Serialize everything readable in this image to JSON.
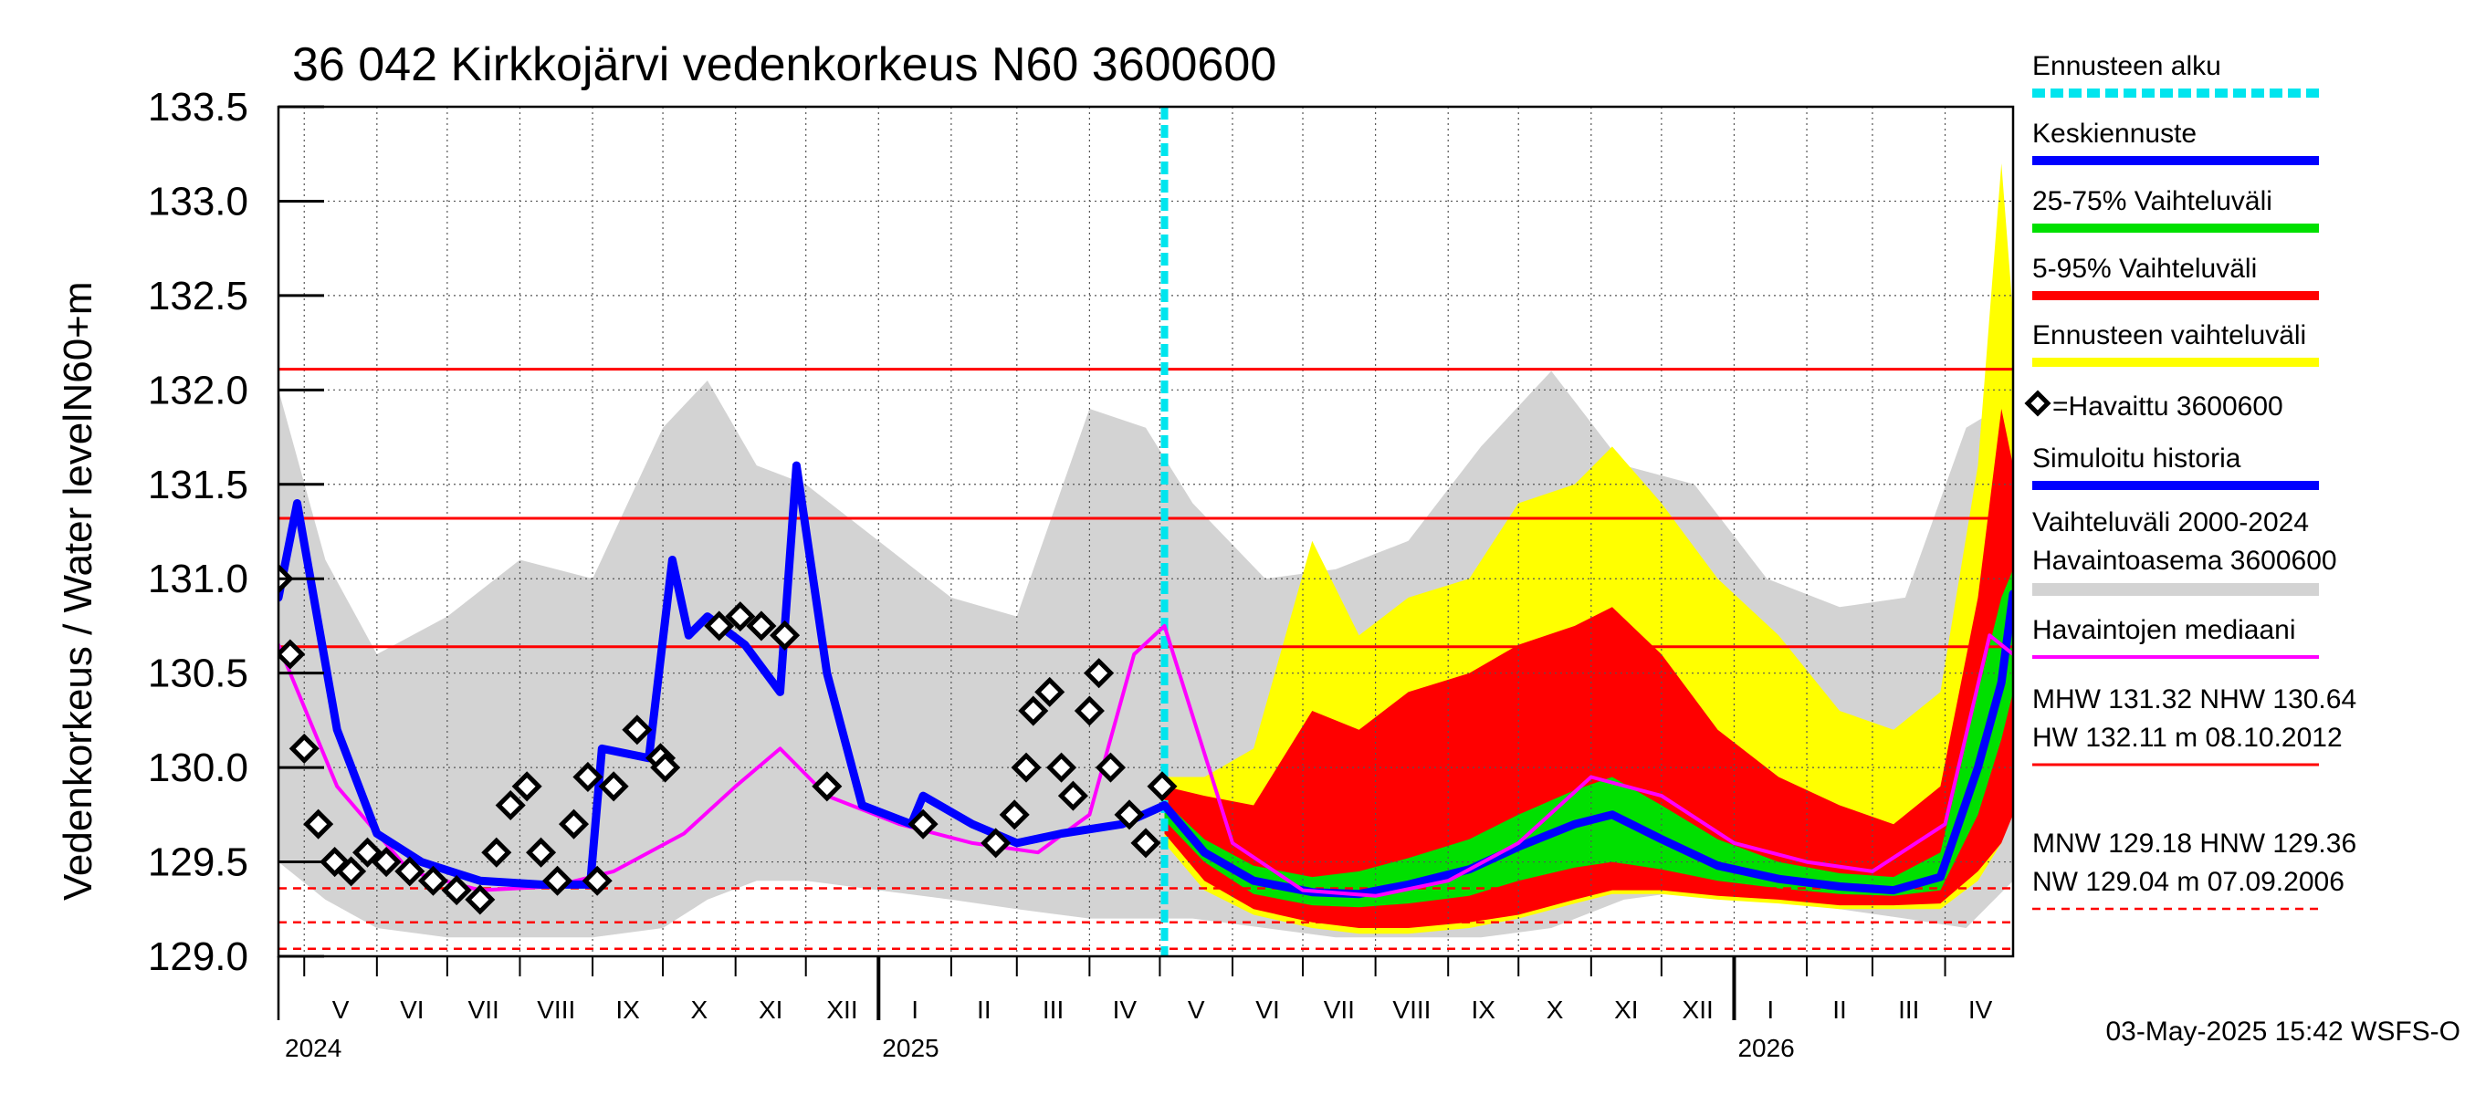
{
  "chart_data": {
    "type": "area",
    "title": "36 042 Kirkkojärvi vedenkorkeus N60 3600600",
    "ylabel_top": "N60+m",
    "ylabel": "Vedenkorkeus / Water level",
    "ylim": [
      129.0,
      133.5
    ],
    "yticks": [
      "133.5",
      "133.0",
      "132.5",
      "132.0",
      "131.5",
      "131.0",
      "130.5",
      "130.0",
      "129.5",
      "129.0"
    ],
    "x_start": "2024-04-20",
    "x_end": "2026-04-30",
    "forecast_start": "2025-05-03",
    "months": [
      {
        "label": "V",
        "start": "2024-05-01",
        "end": "2024-06-01"
      },
      {
        "label": "VI",
        "start": "2024-06-01",
        "end": "2024-07-01"
      },
      {
        "label": "VII",
        "start": "2024-07-01",
        "end": "2024-08-01"
      },
      {
        "label": "VIII",
        "start": "2024-08-01",
        "end": "2024-09-01"
      },
      {
        "label": "IX",
        "start": "2024-09-01",
        "end": "2024-10-01"
      },
      {
        "label": "X",
        "start": "2024-10-01",
        "end": "2024-11-01"
      },
      {
        "label": "XI",
        "start": "2024-11-01",
        "end": "2024-12-01"
      },
      {
        "label": "XII",
        "start": "2024-12-01",
        "end": "2025-01-01"
      },
      {
        "label": "I",
        "start": "2025-01-01",
        "end": "2025-02-01"
      },
      {
        "label": "II",
        "start": "2025-02-01",
        "end": "2025-03-01"
      },
      {
        "label": "III",
        "start": "2025-03-01",
        "end": "2025-04-01"
      },
      {
        "label": "IV",
        "start": "2025-04-01",
        "end": "2025-05-01"
      },
      {
        "label": "V",
        "start": "2025-05-01",
        "end": "2025-06-01"
      },
      {
        "label": "VI",
        "start": "2025-06-01",
        "end": "2025-07-01"
      },
      {
        "label": "VII",
        "start": "2025-07-01",
        "end": "2025-08-01"
      },
      {
        "label": "VIII",
        "start": "2025-08-01",
        "end": "2025-09-01"
      },
      {
        "label": "IX",
        "start": "2025-09-01",
        "end": "2025-10-01"
      },
      {
        "label": "X",
        "start": "2025-10-01",
        "end": "2025-11-01"
      },
      {
        "label": "XI",
        "start": "2025-11-01",
        "end": "2025-12-01"
      },
      {
        "label": "XII",
        "start": "2025-12-01",
        "end": "2026-01-01"
      },
      {
        "label": "I",
        "start": "2026-01-01",
        "end": "2026-02-01"
      },
      {
        "label": "II",
        "start": "2026-02-01",
        "end": "2026-03-01"
      },
      {
        "label": "III",
        "start": "2026-03-01",
        "end": "2026-04-01"
      },
      {
        "label": "IV",
        "start": "2026-04-01",
        "end": "2026-05-01"
      }
    ],
    "years": [
      {
        "label": "2024",
        "date": "2024-04-20"
      },
      {
        "label": "2025",
        "date": "2025-01-01"
      },
      {
        "label": "2026",
        "date": "2026-01-01"
      }
    ],
    "reference_lines": [
      {
        "name": "HW",
        "value": 132.11,
        "style": "solid"
      },
      {
        "name": "MHW",
        "value": 131.32,
        "style": "solid"
      },
      {
        "name": "NHW",
        "value": 130.64,
        "style": "solid"
      },
      {
        "name": "HNW",
        "value": 129.36,
        "style": "dashed"
      },
      {
        "name": "MNW",
        "value": 129.18,
        "style": "dashed"
      },
      {
        "name": "NW",
        "value": 129.04,
        "style": "dashed"
      }
    ],
    "series": [
      {
        "name": "Vaihteluväli 2000-2024",
        "kind": "band",
        "color": "#d3d3d3",
        "x": [
          "2024-04-20",
          "2024-05-10",
          "2024-06-01",
          "2024-07-01",
          "2024-08-01",
          "2024-09-01",
          "2024-10-01",
          "2024-10-20",
          "2024-11-10",
          "2024-12-01",
          "2025-01-01",
          "2025-02-01",
          "2025-03-01",
          "2025-04-01",
          "2025-04-25",
          "2025-05-15",
          "2025-06-15",
          "2025-07-15",
          "2025-08-15",
          "2025-09-15",
          "2025-10-15",
          "2025-11-15",
          "2025-12-15",
          "2026-01-15",
          "2026-02-15",
          "2026-03-15",
          "2026-04-10",
          "2026-04-30"
        ],
        "low": [
          129.5,
          129.3,
          129.15,
          129.1,
          129.1,
          129.1,
          129.15,
          129.3,
          129.4,
          129.4,
          129.35,
          129.3,
          129.25,
          129.2,
          129.2,
          129.2,
          129.15,
          129.1,
          129.1,
          129.1,
          129.15,
          129.3,
          129.35,
          129.3,
          129.25,
          129.2,
          129.15,
          129.4
        ],
        "high": [
          132.0,
          131.1,
          130.6,
          130.8,
          131.1,
          131.0,
          131.8,
          132.05,
          131.6,
          131.5,
          131.2,
          130.9,
          130.8,
          131.9,
          131.8,
          131.4,
          131.0,
          131.05,
          131.2,
          131.7,
          132.1,
          131.6,
          131.5,
          131.0,
          130.85,
          130.9,
          131.8,
          131.95
        ]
      },
      {
        "name": "Ennusteen vaihteluväli",
        "kind": "band",
        "color": "#ffff00",
        "x": [
          "2025-05-03",
          "2025-05-20",
          "2025-06-10",
          "2025-07-05",
          "2025-07-25",
          "2025-08-15",
          "2025-09-10",
          "2025-10-01",
          "2025-10-25",
          "2025-11-10",
          "2025-12-01",
          "2025-12-25",
          "2026-01-20",
          "2026-02-15",
          "2026-03-10",
          "2026-03-30",
          "2026-04-15",
          "2026-04-25",
          "2026-04-30"
        ],
        "low": [
          129.6,
          129.35,
          129.22,
          129.15,
          129.12,
          129.12,
          129.15,
          129.2,
          129.28,
          129.33,
          129.33,
          129.3,
          129.28,
          129.25,
          129.25,
          129.25,
          129.4,
          129.6,
          129.9
        ],
        "high": [
          129.95,
          129.95,
          130.1,
          131.2,
          130.7,
          130.9,
          131.0,
          131.4,
          131.5,
          131.7,
          131.4,
          131.0,
          130.7,
          130.3,
          130.2,
          130.4,
          131.6,
          133.2,
          132.4
        ]
      },
      {
        "name": "5-95% Vaihteluväli",
        "kind": "band",
        "color": "#ff0000",
        "x": [
          "2025-05-03",
          "2025-05-20",
          "2025-06-10",
          "2025-07-05",
          "2025-07-25",
          "2025-08-15",
          "2025-09-10",
          "2025-10-01",
          "2025-10-25",
          "2025-11-10",
          "2025-12-01",
          "2025-12-25",
          "2026-01-20",
          "2026-02-15",
          "2026-03-10",
          "2026-03-30",
          "2026-04-15",
          "2026-04-25",
          "2026-04-30"
        ],
        "low": [
          129.65,
          129.4,
          129.25,
          129.18,
          129.15,
          129.15,
          129.18,
          129.22,
          129.3,
          129.35,
          129.35,
          129.32,
          129.3,
          129.27,
          129.27,
          129.28,
          129.45,
          129.6,
          129.75
        ],
        "high": [
          129.9,
          129.85,
          129.8,
          130.3,
          130.2,
          130.4,
          130.5,
          130.65,
          130.75,
          130.85,
          130.6,
          130.2,
          129.95,
          129.8,
          129.7,
          129.9,
          130.9,
          131.9,
          131.6
        ]
      },
      {
        "name": "25-75% Vaihteluväli",
        "kind": "band",
        "color": "#00e000",
        "x": [
          "2025-05-03",
          "2025-05-20",
          "2025-06-10",
          "2025-07-05",
          "2025-07-25",
          "2025-08-15",
          "2025-09-10",
          "2025-10-01",
          "2025-10-25",
          "2025-11-10",
          "2025-12-01",
          "2025-12-25",
          "2026-01-20",
          "2026-02-15",
          "2026-03-10",
          "2026-03-30",
          "2026-04-15",
          "2026-04-25",
          "2026-04-30"
        ],
        "low": [
          129.72,
          129.5,
          129.33,
          129.27,
          129.26,
          129.28,
          129.32,
          129.4,
          129.47,
          129.5,
          129.46,
          129.4,
          129.36,
          129.33,
          129.32,
          129.35,
          129.75,
          130.15,
          130.4
        ],
        "high": [
          129.82,
          129.62,
          129.48,
          129.42,
          129.45,
          129.52,
          129.62,
          129.75,
          129.88,
          129.95,
          129.8,
          129.62,
          129.5,
          129.44,
          129.42,
          129.55,
          130.4,
          130.9,
          131.05
        ]
      },
      {
        "name": "Keskiennuste",
        "kind": "line",
        "color": "#0000ff",
        "x": [
          "2025-05-03",
          "2025-05-20",
          "2025-06-10",
          "2025-07-05",
          "2025-07-25",
          "2025-08-15",
          "2025-09-10",
          "2025-10-01",
          "2025-10-25",
          "2025-11-10",
          "2025-12-01",
          "2025-12-25",
          "2026-01-20",
          "2026-02-15",
          "2026-03-10",
          "2026-03-30",
          "2026-04-15",
          "2026-04-25",
          "2026-04-30"
        ],
        "values": [
          129.8,
          129.55,
          129.4,
          129.34,
          129.33,
          129.38,
          129.46,
          129.58,
          129.7,
          129.75,
          129.62,
          129.48,
          129.41,
          129.37,
          129.35,
          129.42,
          130.0,
          130.45,
          130.92
        ]
      },
      {
        "name": "Havaintojen mediaani",
        "kind": "line",
        "color": "#ff00ff",
        "x": [
          "2024-04-20",
          "2024-05-15",
          "2024-06-15",
          "2024-07-15",
          "2024-08-15",
          "2024-09-10",
          "2024-10-10",
          "2024-11-01",
          "2024-11-20",
          "2024-12-10",
          "2025-01-10",
          "2025-02-10",
          "2025-03-10",
          "2025-04-01",
          "2025-04-20",
          "2025-05-03",
          "2025-06-01",
          "2025-07-01",
          "2025-08-01",
          "2025-09-01",
          "2025-10-01",
          "2025-11-01",
          "2025-12-01",
          "2026-01-01",
          "2026-02-01",
          "2026-03-01",
          "2026-04-01",
          "2026-04-20",
          "2026-04-30"
        ],
        "values": [
          130.65,
          129.9,
          129.45,
          129.35,
          129.37,
          129.45,
          129.65,
          129.9,
          130.1,
          129.85,
          129.7,
          129.6,
          129.55,
          129.75,
          130.6,
          130.75,
          129.6,
          129.35,
          129.32,
          129.4,
          129.6,
          129.95,
          129.85,
          129.6,
          129.5,
          129.45,
          129.7,
          130.7,
          130.6
        ]
      },
      {
        "name": "Simuloitu historia",
        "kind": "line",
        "color": "#0000ff",
        "x": [
          "2024-04-20",
          "2024-04-28",
          "2024-05-15",
          "2024-06-01",
          "2024-06-20",
          "2024-07-15",
          "2024-08-10",
          "2024-08-31",
          "2024-09-05",
          "2024-09-25",
          "2024-10-05",
          "2024-10-12",
          "2024-10-20",
          "2024-11-05",
          "2024-11-20",
          "2024-11-27",
          "2024-12-10",
          "2024-12-25",
          "2025-01-15",
          "2025-01-20",
          "2025-02-10",
          "2025-03-01",
          "2025-03-20",
          "2025-04-15",
          "2025-05-03"
        ],
        "values": [
          130.9,
          131.4,
          130.2,
          129.65,
          129.5,
          129.4,
          129.38,
          129.38,
          130.1,
          130.05,
          131.1,
          130.7,
          130.8,
          130.65,
          130.4,
          131.6,
          130.5,
          129.8,
          129.7,
          129.85,
          129.7,
          129.6,
          129.65,
          129.7,
          129.8
        ]
      },
      {
        "name": "Havaittu 3600600",
        "kind": "markers",
        "color": "#000000",
        "x": [
          "2024-04-20",
          "2024-04-25",
          "2024-05-01",
          "2024-05-07",
          "2024-05-14",
          "2024-05-21",
          "2024-05-28",
          "2024-06-05",
          "2024-06-15",
          "2024-06-25",
          "2024-07-05",
          "2024-07-15",
          "2024-07-22",
          "2024-07-28",
          "2024-08-04",
          "2024-08-10",
          "2024-08-17",
          "2024-08-24",
          "2024-08-30",
          "2024-09-03",
          "2024-09-10",
          "2024-09-20",
          "2024-09-30",
          "2024-10-02",
          "2024-10-25",
          "2024-11-03",
          "2024-11-12",
          "2024-11-22",
          "2024-12-10",
          "2025-01-20",
          "2025-02-20",
          "2025-02-28",
          "2025-03-05",
          "2025-03-08",
          "2025-03-15",
          "2025-03-20",
          "2025-03-25",
          "2025-04-01",
          "2025-04-05",
          "2025-04-10",
          "2025-04-18",
          "2025-04-25",
          "2025-05-02"
        ],
        "values": [
          131.0,
          130.6,
          130.1,
          129.7,
          129.5,
          129.45,
          129.55,
          129.5,
          129.45,
          129.4,
          129.35,
          129.3,
          129.55,
          129.8,
          129.9,
          129.55,
          129.4,
          129.7,
          129.95,
          129.4,
          129.9,
          130.2,
          130.05,
          130.0,
          130.75,
          130.8,
          130.75,
          130.7,
          129.9,
          129.7,
          129.6,
          129.75,
          130.0,
          130.3,
          130.4,
          130.0,
          129.85,
          130.3,
          130.5,
          130.0,
          129.75,
          129.6,
          129.9
        ]
      }
    ]
  },
  "legend": [
    {
      "label": "Ennusteen alku",
      "color": "#00e5ee",
      "kind": "dashed"
    },
    {
      "label": "Keskiennuste",
      "color": "#0000ff",
      "kind": "thick"
    },
    {
      "label": "25-75% Vaihteluväli",
      "color": "#00e000",
      "kind": "thick"
    },
    {
      "label": "5-95% Vaihteluväli",
      "color": "#ff0000",
      "kind": "thick"
    },
    {
      "label": "Ennusteen vaihteluväli",
      "color": "#ffff00",
      "kind": "thick"
    },
    {
      "label": "=Havaittu 3600600",
      "color": "#000000",
      "kind": "marker"
    },
    {
      "label": "Simuloitu historia",
      "color": "#0000ff",
      "kind": "thick"
    },
    {
      "label": "Vaihteluväli 2000-2024",
      "label2": " Havaintoasema 3600600",
      "color": "#d3d3d3",
      "kind": "thick"
    },
    {
      "label": "Havaintojen mediaani",
      "color": "#ff00ff",
      "kind": "thin"
    }
  ],
  "stats": {
    "line1": "MHW 131.32 NHW 130.64",
    "line2": "HW 132.11 m 08.10.2012",
    "line3": "MNW 129.18 HNW 129.36",
    "line4": "NW 129.04 m 07.09.2006"
  },
  "timestamp": "03-May-2025 15:42 WSFS-O"
}
